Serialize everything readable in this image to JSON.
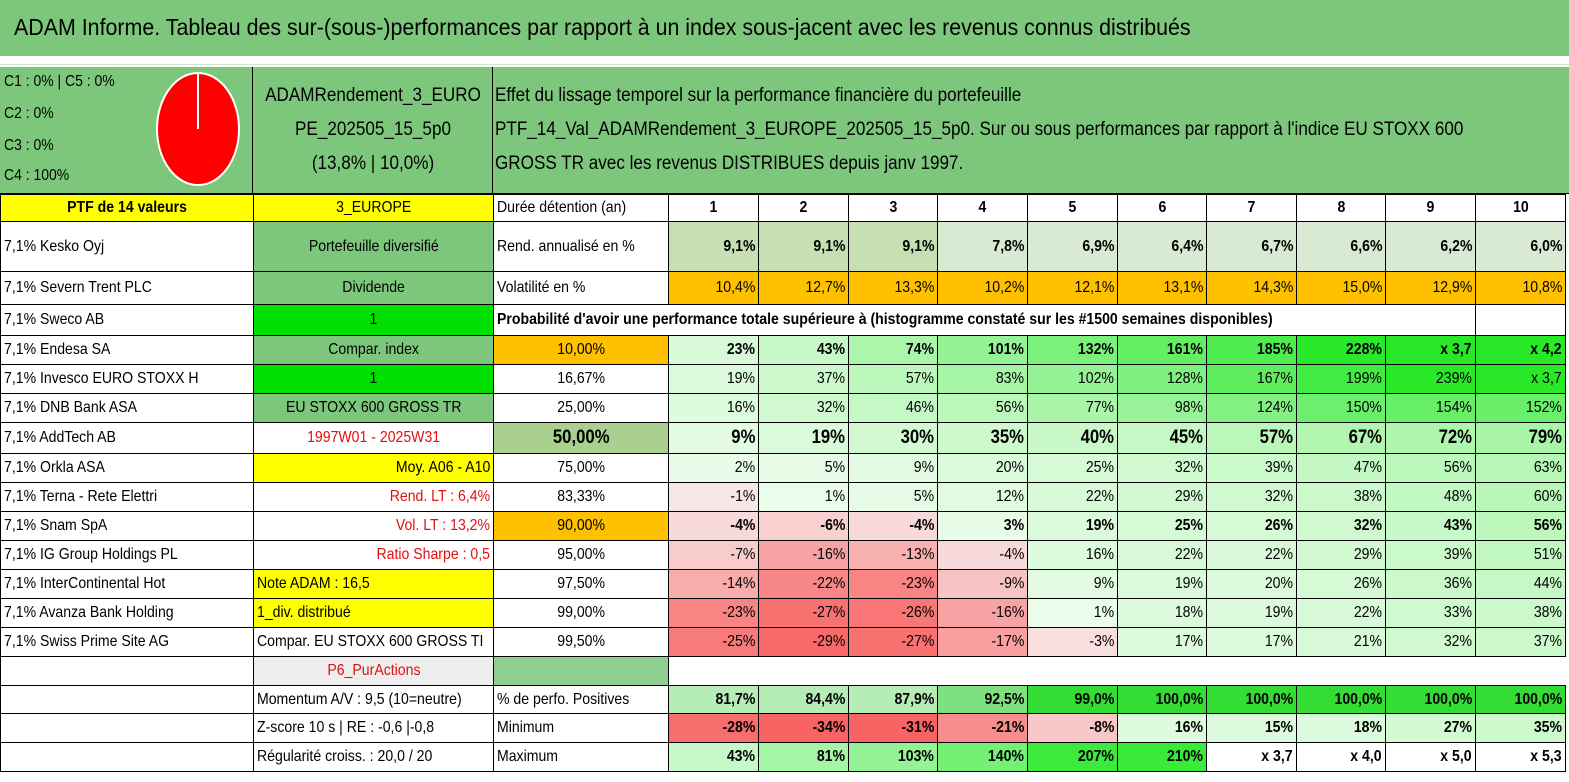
{
  "title": "ADAM Informe. Tableau des sur-(sous-)performances par rapport à un index sous-jacent avec les revenus connus distribués",
  "allocation": [
    "C1 : 0% | C5 : 0%",
    "C2 : 0%",
    "C3 : 0%",
    "C4 : 100%"
  ],
  "portfolio_box": [
    "ADAMRendement_3_EURO",
    "PE_202505_15_5p0",
    "(13,8% | 10,0%)"
  ],
  "description": [
    "Effet du lissage temporel sur la performance financière du portefeuille",
    "PTF_14_Val_ADAMRendement_3_EUROPE_202505_15_5p0. Sur ou sous performances par rapport à l'indice EU STOXX 600",
    "GROSS TR avec les revenus DISTRIBUES depuis janv 1997."
  ],
  "colors": {
    "header_green": "#7dc77d",
    "yellow": "#ffff00",
    "orange": "#ffc000",
    "bright_green": "#00e000",
    "mid_green": "#8fce8f",
    "red_text": "#e01010"
  },
  "durations_label": "Durée détention (an)",
  "durations": [
    "1",
    "2",
    "3",
    "4",
    "5",
    "6",
    "7",
    "8",
    "9",
    "10"
  ],
  "rend_label": "Rend. annualisé en %",
  "rend": [
    "9,1%",
    "9,1%",
    "9,1%",
    "7,8%",
    "6,9%",
    "6,4%",
    "6,7%",
    "6,6%",
    "6,2%",
    "6,0%"
  ],
  "vol_label": "Volatilité en %",
  "vol": [
    "10,4%",
    "12,7%",
    "13,3%",
    "10,2%",
    "12,1%",
    "13,1%",
    "14,3%",
    "15,0%",
    "12,9%",
    "10,8%"
  ],
  "prob_title": "Probabilité d'avoir une performance totale supérieure à (histogramme constaté sur les #1500 semaines disponibles)",
  "col0": [
    "PTF de 14 valeurs",
    "7,1% Kesko Oyj",
    "7,1% Severn Trent PLC",
    "7,1% Sweco AB",
    "7,1% Endesa SA",
    "7,1% Invesco EURO STOXX H",
    "7,1% DNB Bank ASA",
    "7,1% AddTech AB",
    "7,1% Orkla ASA",
    "7,1% Terna - Rete Elettri",
    "7,1% Snam SpA",
    "7,1% IG Group Holdings PL",
    "7,1% InterContinental Hot",
    "7,1% Avanza Bank Holding",
    "7,1% Swiss Prime Site AG",
    "",
    "",
    "",
    ""
  ],
  "col1": [
    "3_EUROPE",
    "Portefeuille diversifié",
    "Dividende",
    "1",
    "Compar. index",
    "1",
    "EU STOXX 600 GROSS TR",
    "1997W01 - 2025W31",
    "Moy. A06 - A10",
    "Rend. LT : 6,4%",
    "Vol. LT : 13,2%",
    "Ratio Sharpe : 0,5",
    "Note ADAM : 16,5",
    "1_div. distribué",
    "Compar. EU STOXX 600 GROSS TI",
    "P6_PurActions",
    "Momentum A/V : 9,5 (10=neutre)",
    "Z-score 10 s | RE : -0,6 |-0,8",
    "Régularité croiss. : 20,0 / 20"
  ],
  "prob_rows": [
    {
      "label": "10,00%",
      "values": [
        "23%",
        "43%",
        "74%",
        "101%",
        "132%",
        "161%",
        "185%",
        "228%",
        "x 3,7",
        "x 4,2"
      ]
    },
    {
      "label": "16,67%",
      "values": [
        "19%",
        "37%",
        "57%",
        "83%",
        "102%",
        "128%",
        "167%",
        "199%",
        "239%",
        "x 3,7"
      ]
    },
    {
      "label": "25,00%",
      "values": [
        "16%",
        "32%",
        "46%",
        "56%",
        "77%",
        "98%",
        "124%",
        "150%",
        "154%",
        "152%"
      ]
    },
    {
      "label": "50,00%",
      "values": [
        "9%",
        "19%",
        "30%",
        "35%",
        "40%",
        "45%",
        "57%",
        "67%",
        "72%",
        "79%"
      ]
    },
    {
      "label": "75,00%",
      "values": [
        "2%",
        "5%",
        "9%",
        "20%",
        "25%",
        "32%",
        "39%",
        "47%",
        "56%",
        "63%"
      ]
    },
    {
      "label": "83,33%",
      "values": [
        "-1%",
        "1%",
        "5%",
        "12%",
        "22%",
        "29%",
        "32%",
        "38%",
        "48%",
        "60%"
      ]
    },
    {
      "label": "90,00%",
      "values": [
        "-4%",
        "-6%",
        "-4%",
        "3%",
        "19%",
        "25%",
        "26%",
        "32%",
        "43%",
        "56%"
      ]
    },
    {
      "label": "95,00%",
      "values": [
        "-7%",
        "-16%",
        "-13%",
        "-4%",
        "16%",
        "22%",
        "22%",
        "29%",
        "39%",
        "51%"
      ]
    },
    {
      "label": "97,50%",
      "values": [
        "-14%",
        "-22%",
        "-23%",
        "-9%",
        "9%",
        "19%",
        "20%",
        "26%",
        "36%",
        "44%"
      ]
    },
    {
      "label": "99,00%",
      "values": [
        "-23%",
        "-27%",
        "-26%",
        "-16%",
        "1%",
        "18%",
        "19%",
        "22%",
        "33%",
        "38%"
      ]
    },
    {
      "label": "99,50%",
      "values": [
        "-25%",
        "-29%",
        "-27%",
        "-17%",
        "-3%",
        "17%",
        "17%",
        "21%",
        "32%",
        "37%"
      ]
    }
  ],
  "stat_rows": [
    {
      "label": "% de perfo. Positives",
      "values": [
        "81,7%",
        "84,4%",
        "87,9%",
        "92,5%",
        "99,0%",
        "100,0%",
        "100,0%",
        "100,0%",
        "100,0%",
        "100,0%"
      ]
    },
    {
      "label": "Minimum",
      "values": [
        "-28%",
        "-34%",
        "-31%",
        "-21%",
        "-8%",
        "16%",
        "15%",
        "18%",
        "27%",
        "35%"
      ]
    },
    {
      "label": "Maximum",
      "values": [
        "43%",
        "81%",
        "103%",
        "140%",
        "207%",
        "210%",
        "x 3,7",
        "x 4,0",
        "x 5,0",
        "x 5,3"
      ]
    }
  ]
}
